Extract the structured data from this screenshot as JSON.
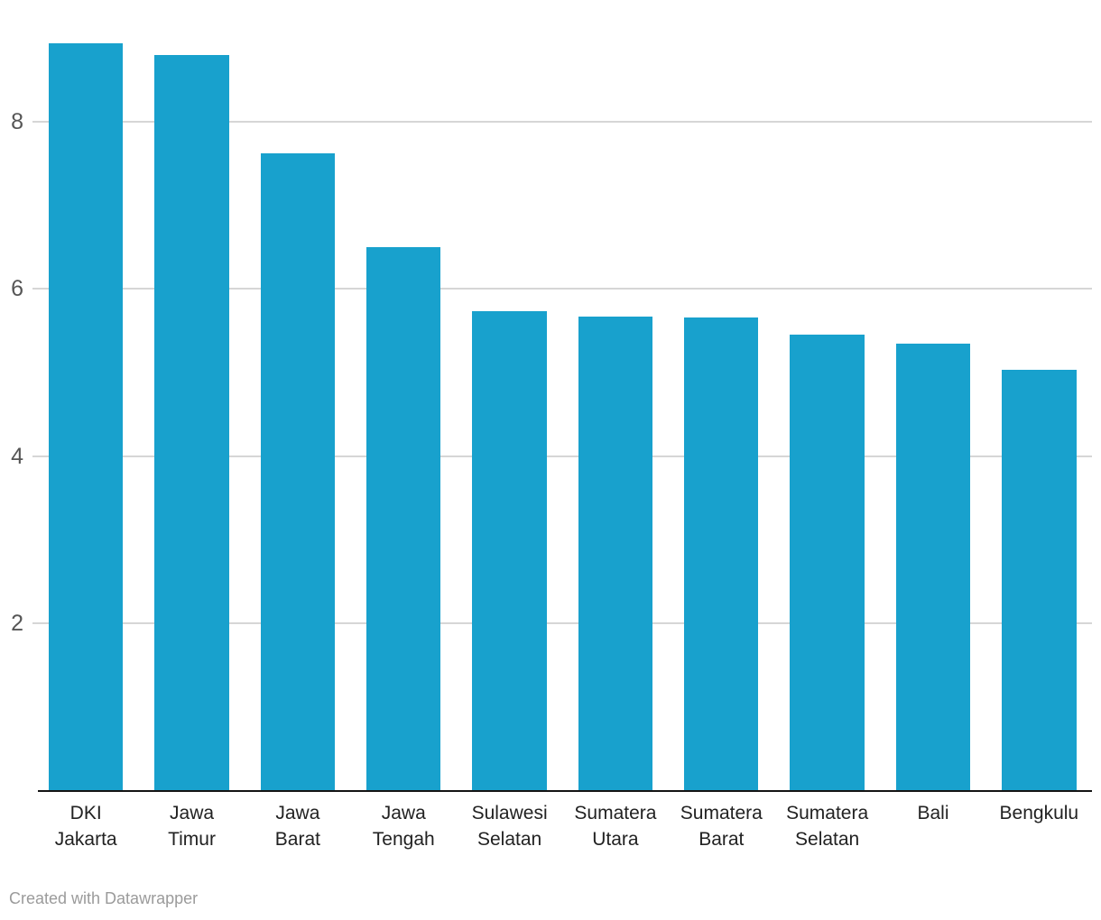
{
  "chart_data": {
    "type": "bar",
    "categories": [
      "DKI Jakarta",
      "Jawa Timur",
      "Jawa Barat",
      "Jawa Tengah",
      "Sulawesi Selatan",
      "Sumatera Utara",
      "Sumatera Barat",
      "Sumatera Selatan",
      "Bali",
      "Bengkulu"
    ],
    "category_lines": [
      [
        "DKI",
        "Jakarta"
      ],
      [
        "Jawa",
        "Timur"
      ],
      [
        "Jawa",
        "Barat"
      ],
      [
        "Jawa",
        "Tengah"
      ],
      [
        "Sulawesi",
        "Selatan"
      ],
      [
        "Sumatera",
        "Utara"
      ],
      [
        "Sumatera",
        "Barat"
      ],
      [
        "Sumatera",
        "Selatan"
      ],
      [
        "Bali"
      ],
      [
        "Bengkulu"
      ]
    ],
    "values": [
      8.94,
      8.8,
      7.62,
      6.5,
      5.74,
      5.67,
      5.66,
      5.45,
      5.35,
      5.03
    ],
    "title": "",
    "xlabel": "",
    "ylabel": "",
    "y_ticks": [
      2,
      4,
      6,
      8
    ],
    "ylim": [
      0,
      9.45
    ],
    "grid": true,
    "legend": "none",
    "bar_color": "#18a1cd"
  },
  "colors": {
    "bar": "#18a1cd",
    "gridline": "#d6d6d6",
    "axis_line": "#141414",
    "y_tick_label": "#565656",
    "x_label": "#222222",
    "credit_text": "#9b9b9b"
  },
  "footer": {
    "credit": "Created with Datawrapper"
  }
}
